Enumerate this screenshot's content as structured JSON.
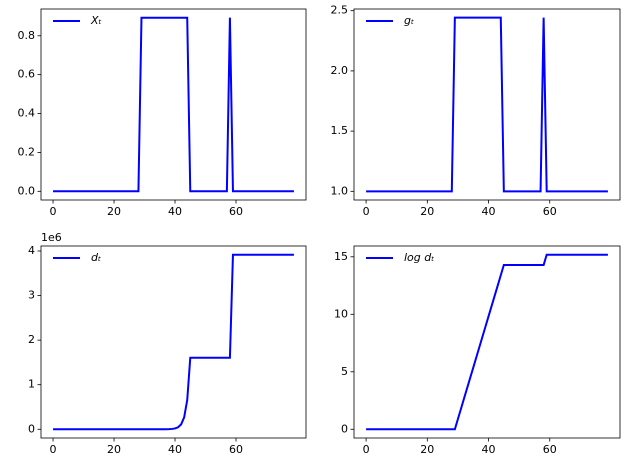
{
  "chart_data": [
    {
      "type": "line",
      "legend": "upper left",
      "x": [
        0,
        1,
        2,
        3,
        4,
        5,
        6,
        7,
        8,
        9,
        10,
        11,
        12,
        13,
        14,
        15,
        16,
        17,
        18,
        19,
        20,
        21,
        22,
        23,
        24,
        25,
        26,
        27,
        28,
        29,
        30,
        31,
        32,
        33,
        34,
        35,
        36,
        37,
        38,
        39,
        40,
        41,
        42,
        43,
        44,
        45,
        46,
        47,
        48,
        49,
        50,
        51,
        52,
        53,
        54,
        55,
        56,
        57,
        58,
        59,
        60,
        61,
        62,
        63,
        64,
        65,
        66,
        67,
        68,
        69,
        70,
        71,
        72,
        73,
        74,
        75,
        76,
        77,
        78,
        79
      ],
      "series": [
        {
          "name": "Xₜ",
          "color": "#0000ff",
          "values": [
            0,
            0,
            0,
            0,
            0,
            0,
            0,
            0,
            0,
            0,
            0,
            0,
            0,
            0,
            0,
            0,
            0,
            0,
            0,
            0,
            0,
            0,
            0,
            0,
            0,
            0,
            0,
            0,
            0,
            0.893,
            0.893,
            0.893,
            0.893,
            0.893,
            0.893,
            0.893,
            0.893,
            0.893,
            0.893,
            0.893,
            0.893,
            0.893,
            0.893,
            0.893,
            0.893,
            0,
            0,
            0,
            0,
            0,
            0,
            0,
            0,
            0,
            0,
            0,
            0,
            0,
            0.893,
            0,
            0,
            0,
            0,
            0,
            0,
            0,
            0,
            0,
            0,
            0,
            0,
            0,
            0,
            0,
            0,
            0,
            0,
            0,
            0,
            0
          ]
        }
      ],
      "xlim": [
        -3.95,
        82.95
      ],
      "xticks": [
        0,
        20,
        40,
        60
      ],
      "ylim": [
        -0.0447,
        0.9377
      ],
      "yticks": [
        {
          "value": 0,
          "label": "0.0"
        },
        {
          "value": 0.2,
          "label": "0.2"
        },
        {
          "value": 0.4,
          "label": "0.4"
        },
        {
          "value": 0.6,
          "label": "0.6"
        },
        {
          "value": 0.8,
          "label": "0.8"
        }
      ]
    },
    {
      "type": "line",
      "legend": "upper left",
      "x": [
        0,
        1,
        2,
        3,
        4,
        5,
        6,
        7,
        8,
        9,
        10,
        11,
        12,
        13,
        14,
        15,
        16,
        17,
        18,
        19,
        20,
        21,
        22,
        23,
        24,
        25,
        26,
        27,
        28,
        29,
        30,
        31,
        32,
        33,
        34,
        35,
        36,
        37,
        38,
        39,
        40,
        41,
        42,
        43,
        44,
        45,
        46,
        47,
        48,
        49,
        50,
        51,
        52,
        53,
        54,
        55,
        56,
        57,
        58,
        59,
        60,
        61,
        62,
        63,
        64,
        65,
        66,
        67,
        68,
        69,
        70,
        71,
        72,
        73,
        74,
        75,
        76,
        77,
        78,
        79
      ],
      "series": [
        {
          "name": "gₜ",
          "color": "#0000ff",
          "values": [
            1,
            1,
            1,
            1,
            1,
            1,
            1,
            1,
            1,
            1,
            1,
            1,
            1,
            1,
            1,
            1,
            1,
            1,
            1,
            1,
            1,
            1,
            1,
            1,
            1,
            1,
            1,
            1,
            1,
            2.442,
            2.442,
            2.442,
            2.442,
            2.442,
            2.442,
            2.442,
            2.442,
            2.442,
            2.442,
            2.442,
            2.442,
            2.442,
            2.442,
            2.442,
            2.442,
            1,
            1,
            1,
            1,
            1,
            1,
            1,
            1,
            1,
            1,
            1,
            1,
            1,
            2.442,
            1,
            1,
            1,
            1,
            1,
            1,
            1,
            1,
            1,
            1,
            1,
            1,
            1,
            1,
            1,
            1,
            1,
            1,
            1,
            1,
            1
          ]
        }
      ],
      "xlim": [
        -3.95,
        82.95
      ],
      "xticks": [
        0,
        20,
        40,
        60
      ],
      "ylim": [
        0.9279,
        2.5141
      ],
      "yticks": [
        {
          "value": 1,
          "label": "1.0"
        },
        {
          "value": 1.5,
          "label": "1.5"
        },
        {
          "value": 2,
          "label": "2.0"
        },
        {
          "value": 2.5,
          "label": "2.5"
        }
      ]
    },
    {
      "type": "line",
      "legend": "upper left",
      "offset_text": "1e6",
      "x": [
        0,
        1,
        2,
        3,
        4,
        5,
        6,
        7,
        8,
        9,
        10,
        11,
        12,
        13,
        14,
        15,
        16,
        17,
        18,
        19,
        20,
        21,
        22,
        23,
        24,
        25,
        26,
        27,
        28,
        29,
        30,
        31,
        32,
        33,
        34,
        35,
        36,
        37,
        38,
        39,
        40,
        41,
        42,
        43,
        44,
        45,
        46,
        47,
        48,
        49,
        50,
        51,
        52,
        53,
        54,
        55,
        56,
        57,
        58,
        59,
        60,
        61,
        62,
        63,
        64,
        65,
        66,
        67,
        68,
        69,
        70,
        71,
        72,
        73,
        74,
        75,
        76,
        77,
        78,
        79
      ],
      "series": [
        {
          "name": "dₜ",
          "color": "#0000ff",
          "values": [
            1,
            1,
            1,
            1,
            1,
            1,
            1,
            1,
            1,
            1,
            1,
            1,
            1,
            1,
            1,
            1,
            1,
            1,
            1,
            1,
            1,
            1,
            1,
            1,
            1,
            1,
            1,
            1,
            1,
            1,
            2.44,
            5.97,
            14.6,
            35.6,
            86.9,
            212,
            518,
            1266,
            3093,
            7554,
            18449,
            45060,
            110055,
            268800,
            656520,
            1603480,
            1603480,
            1603480,
            1603480,
            1603480,
            1603480,
            1603480,
            1603480,
            1603480,
            1603480,
            1603480,
            1603480,
            1603480,
            1603480,
            3916340,
            3916340,
            3916340,
            3916340,
            3916340,
            3916340,
            3916340,
            3916340,
            3916340,
            3916340,
            3916340,
            3916340,
            3916340,
            3916340,
            3916340,
            3916340,
            3916340,
            3916340,
            3916340,
            3916340,
            3916340
          ]
        }
      ],
      "xlim": [
        -3.95,
        82.95
      ],
      "xticks": [
        0,
        20,
        40,
        60
      ],
      "ylim": [
        -195817,
        4112157
      ],
      "yticks": [
        {
          "value": 0,
          "label": "0"
        },
        {
          "value": 1000000,
          "label": "1"
        },
        {
          "value": 2000000,
          "label": "2"
        },
        {
          "value": 3000000,
          "label": "3"
        },
        {
          "value": 4000000,
          "label": "4"
        }
      ]
    },
    {
      "type": "line",
      "legend": "upper left",
      "x": [
        0,
        1,
        2,
        3,
        4,
        5,
        6,
        7,
        8,
        9,
        10,
        11,
        12,
        13,
        14,
        15,
        16,
        17,
        18,
        19,
        20,
        21,
        22,
        23,
        24,
        25,
        26,
        27,
        28,
        29,
        30,
        31,
        32,
        33,
        34,
        35,
        36,
        37,
        38,
        39,
        40,
        41,
        42,
        43,
        44,
        45,
        46,
        47,
        48,
        49,
        50,
        51,
        52,
        53,
        54,
        55,
        56,
        57,
        58,
        59,
        60,
        61,
        62,
        63,
        64,
        65,
        66,
        67,
        68,
        69,
        70,
        71,
        72,
        73,
        74,
        75,
        76,
        77,
        78,
        79
      ],
      "series": [
        {
          "name": "log dₜ",
          "color": "#0000ff",
          "values": [
            0,
            0,
            0,
            0,
            0,
            0,
            0,
            0,
            0,
            0,
            0,
            0,
            0,
            0,
            0,
            0,
            0,
            0,
            0,
            0,
            0,
            0,
            0,
            0,
            0,
            0,
            0,
            0,
            0,
            0,
            0.893,
            1.786,
            2.679,
            3.572,
            4.465,
            5.358,
            6.251,
            7.144,
            8.037,
            8.93,
            9.823,
            10.716,
            11.609,
            12.502,
            13.395,
            14.288,
            14.288,
            14.288,
            14.288,
            14.288,
            14.288,
            14.288,
            14.288,
            14.288,
            14.288,
            14.288,
            14.288,
            14.288,
            14.288,
            15.181,
            15.181,
            15.181,
            15.181,
            15.181,
            15.181,
            15.181,
            15.181,
            15.181,
            15.181,
            15.181,
            15.181,
            15.181,
            15.181,
            15.181,
            15.181,
            15.181,
            15.181,
            15.181,
            15.181,
            15.181
          ]
        }
      ],
      "xlim": [
        -3.95,
        82.95
      ],
      "xticks": [
        0,
        20,
        40,
        60
      ],
      "ylim": [
        -0.759,
        15.94
      ],
      "yticks": [
        0,
        5,
        10,
        15
      ]
    }
  ]
}
